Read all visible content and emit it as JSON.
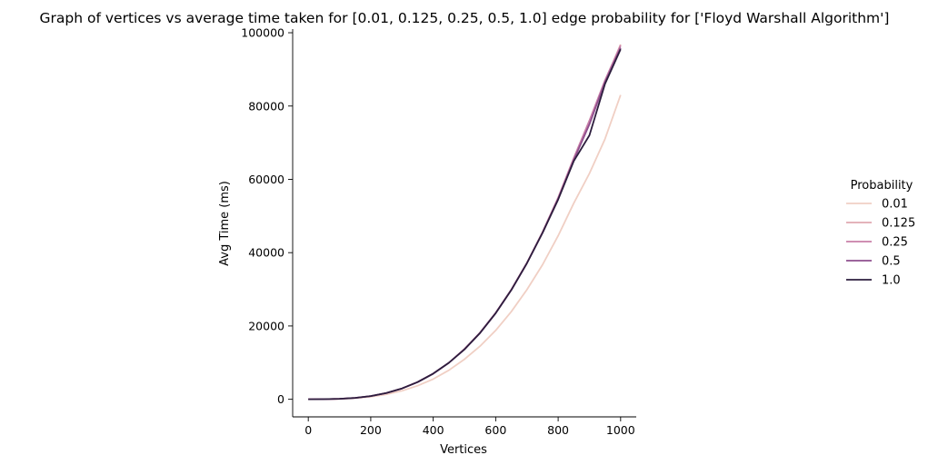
{
  "chart_data": {
    "type": "line",
    "title": "Graph of vertices vs average time taken for [0.01, 0.125, 0.25, 0.5, 1.0] edge probability for ['Floyd Warshall Algorithm']",
    "xlabel": "Vertices",
    "ylabel": "Avg Time (ms)",
    "xlim": [
      -50,
      1050
    ],
    "ylim": [
      -4800,
      101000
    ],
    "xticks": [
      0,
      200,
      400,
      600,
      800,
      1000
    ],
    "yticks": [
      0,
      20000,
      40000,
      60000,
      80000,
      100000
    ],
    "xtick_labels": [
      "0",
      "200",
      "400",
      "600",
      "800",
      "1000"
    ],
    "ytick_labels": [
      "0",
      "20000",
      "40000",
      "60000",
      "80000",
      "100000"
    ],
    "grid": false,
    "legend": {
      "title": "Probability",
      "placement": "right"
    },
    "x": [
      0,
      50,
      100,
      150,
      200,
      250,
      300,
      350,
      400,
      450,
      500,
      550,
      600,
      650,
      700,
      750,
      800,
      850,
      900,
      950,
      1000
    ],
    "series": [
      {
        "name": "0.01",
        "color": "#f0cfc4",
        "values": [
          0,
          20,
          90,
          290,
          700,
          1340,
          2300,
          3700,
          5500,
          7900,
          10900,
          14500,
          18800,
          23900,
          29900,
          36700,
          44600,
          53500,
          61600,
          71000,
          83000
        ]
      },
      {
        "name": "0.125",
        "color": "#e0a8b0",
        "values": [
          0,
          30,
          120,
          380,
          880,
          1720,
          2950,
          4700,
          7000,
          9950,
          13700,
          18200,
          23600,
          29900,
          37200,
          45600,
          55000,
          65800,
          76000,
          86800,
          96800
        ]
      },
      {
        "name": "0.25",
        "color": "#c87fa8",
        "values": [
          0,
          30,
          120,
          380,
          880,
          1720,
          2950,
          4700,
          7000,
          9950,
          13700,
          18200,
          23600,
          29900,
          37200,
          45600,
          55000,
          65800,
          76000,
          87000,
          96500
        ]
      },
      {
        "name": "0.5",
        "color": "#8e4f8e",
        "values": [
          0,
          30,
          120,
          380,
          880,
          1720,
          2950,
          4700,
          7000,
          9950,
          13600,
          18100,
          23500,
          29800,
          37100,
          45400,
          54700,
          65300,
          75000,
          86500,
          95900
        ]
      },
      {
        "name": "1.0",
        "color": "#2d1e3e",
        "values": [
          0,
          30,
          120,
          380,
          880,
          1720,
          2950,
          4700,
          7000,
          9950,
          13600,
          18100,
          23500,
          29800,
          37100,
          45400,
          54500,
          65000,
          72000,
          86000,
          95500
        ]
      }
    ]
  }
}
